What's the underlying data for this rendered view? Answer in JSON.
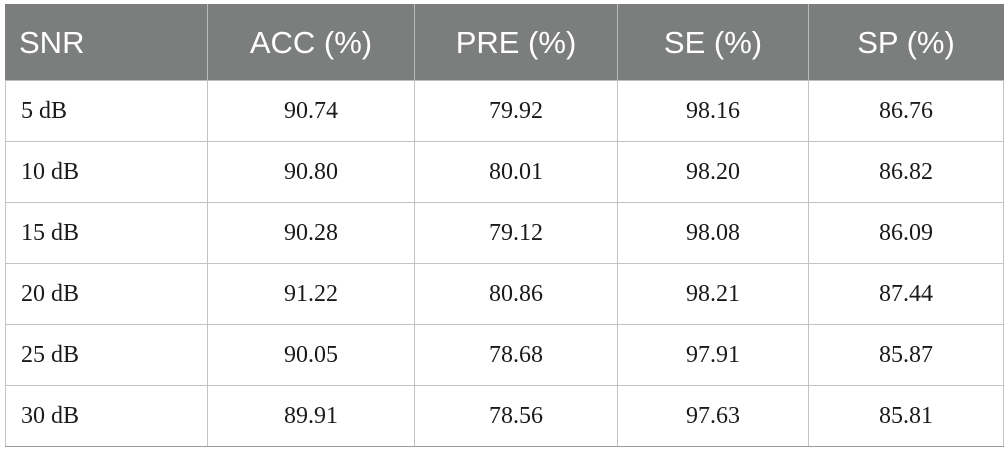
{
  "table": {
    "headers": [
      "SNR",
      "ACC (%)",
      "PRE (%)",
      "SE (%)",
      "SP (%)"
    ],
    "rows": [
      [
        "5 dB",
        "90.74",
        "79.92",
        "98.16",
        "86.76"
      ],
      [
        "10 dB",
        "90.80",
        "80.01",
        "98.20",
        "86.82"
      ],
      [
        "15 dB",
        "90.28",
        "79.12",
        "98.08",
        "86.09"
      ],
      [
        "20 dB",
        "91.22",
        "80.86",
        "98.21",
        "87.44"
      ],
      [
        "25 dB",
        "90.05",
        "78.68",
        "97.91",
        "85.87"
      ],
      [
        "30 dB",
        "89.91",
        "78.56",
        "97.63",
        "85.81"
      ]
    ]
  },
  "colors": {
    "header_background": "#7b7e7d",
    "header_text": "#ffffff",
    "grid_line": "#c2c4c3"
  }
}
